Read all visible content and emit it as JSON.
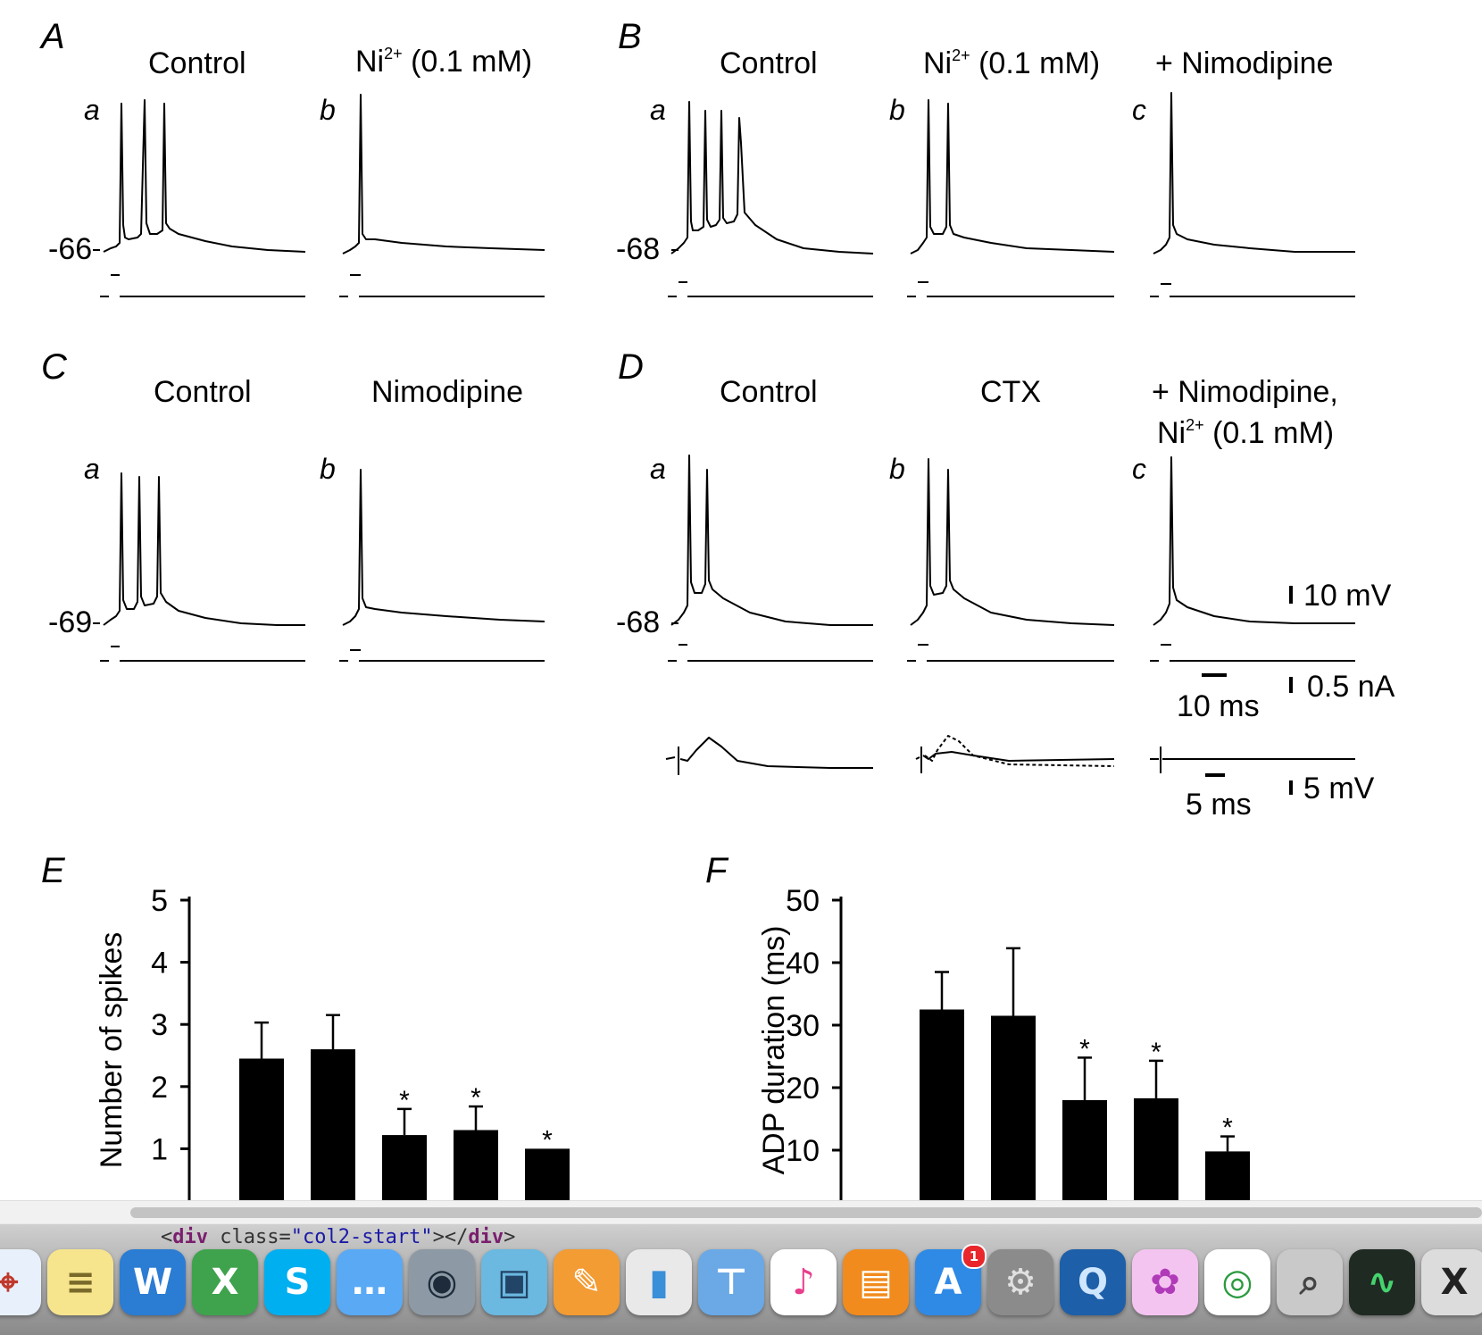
{
  "figure": {
    "panel_A": {
      "label": "A",
      "conditions": [
        {
          "sub": "a",
          "title": "Control"
        },
        {
          "sub": "b",
          "title_base": "Ni",
          "title_sup": "2+",
          "title_rest": " (0.1 mM)"
        }
      ],
      "vm": "-66"
    },
    "panel_B": {
      "label": "B",
      "conditions": [
        {
          "sub": "a",
          "title": "Control"
        },
        {
          "sub": "b",
          "title_base": "Ni",
          "title_sup": "2+",
          "title_rest": " (0.1 mM)"
        },
        {
          "sub": "c",
          "title": "+ Nimodipine"
        }
      ],
      "vm": "-68"
    },
    "panel_C": {
      "label": "C",
      "conditions": [
        {
          "sub": "a",
          "title": "Control"
        },
        {
          "sub": "b",
          "title": "Nimodipine"
        }
      ],
      "vm": "-69"
    },
    "panel_D": {
      "label": "D",
      "conditions": [
        {
          "sub": "a",
          "title": "Control"
        },
        {
          "sub": "b",
          "title": "CTX"
        },
        {
          "sub": "c",
          "title_line1": "+ Nimodipine,",
          "title_base": "Ni",
          "title_sup": "2+",
          "title_rest": " (0.1 mM)"
        }
      ],
      "vm": "-68"
    },
    "scalebars": {
      "voltage": "10 mV",
      "current": "0.5 nA",
      "time": "10 ms",
      "inset_time": "5 ms",
      "inset_voltage": "5 mV"
    },
    "panel_E": {
      "label": "E"
    },
    "panel_F": {
      "label": "F"
    }
  },
  "chart_data": [
    {
      "type": "bar",
      "panel": "E",
      "ylabel": "Number of spikes",
      "ylim": [
        0,
        5
      ],
      "yticks": [
        "5",
        "4",
        "3",
        "2",
        "1"
      ],
      "values": [
        2.45,
        2.6,
        1.22,
        1.3,
        1.0
      ],
      "errors": [
        0.58,
        0.55,
        0.42,
        0.38,
        0
      ],
      "significance": [
        "",
        "",
        "*",
        "*",
        "*"
      ]
    },
    {
      "type": "bar",
      "panel": "F",
      "ylabel": "ADP duration (ms)",
      "ylim": [
        0,
        50
      ],
      "yticks": [
        "50",
        "40",
        "30",
        "20",
        "10"
      ],
      "values": [
        32.5,
        31.5,
        18.0,
        18.3,
        9.8
      ],
      "errors": [
        6.0,
        10.8,
        6.8,
        6.0,
        2.4
      ],
      "significance": [
        "",
        "",
        "*",
        "*",
        "*"
      ]
    }
  ],
  "scrollbar": {
    "orientation": "horizontal"
  },
  "dock": {
    "tooltip": {
      "t1": "<",
      "t2": "div",
      "t3": " class=",
      "t4": "\"col2-start\"",
      "t5": "></",
      "t6": "div",
      "t7": ">"
    },
    "apps": [
      {
        "name": "safari-icon",
        "glyph": "⌖",
        "color": "#e8f1fb",
        "fg": "#c0392b"
      },
      {
        "name": "stickies-icon",
        "glyph": "≡",
        "color": "#f6e58d",
        "fg": "#7a6a2a"
      },
      {
        "name": "word-icon",
        "glyph": "W",
        "color": "#2b7cd3",
        "fg": "#ffffff"
      },
      {
        "name": "excel-icon",
        "glyph": "X",
        "color": "#3fa34d",
        "fg": "#ffffff"
      },
      {
        "name": "skype-icon",
        "glyph": "S",
        "color": "#00aff0",
        "fg": "#ffffff"
      },
      {
        "name": "messages-icon",
        "glyph": "…",
        "color": "#5aa9f5",
        "fg": "#ffffff"
      },
      {
        "name": "facetime-icon",
        "glyph": "◉",
        "color": "#8d9aa6",
        "fg": "#1d2b3a"
      },
      {
        "name": "iphoto-icon",
        "glyph": "▣",
        "color": "#6bb8e0",
        "fg": "#224466"
      },
      {
        "name": "pages-icon",
        "glyph": "✎",
        "color": "#f39c33",
        "fg": "#ffffff"
      },
      {
        "name": "numbers-icon",
        "glyph": "▮",
        "color": "#e9e9e9",
        "fg": "#3a8fd9"
      },
      {
        "name": "keynote-icon",
        "glyph": "⊤",
        "color": "#6aa9e6",
        "fg": "#ffffff"
      },
      {
        "name": "itunes-icon",
        "glyph": "♪",
        "color": "#ffffff",
        "fg": "#e83e8c"
      },
      {
        "name": "ibooks-icon",
        "glyph": "▤",
        "color": "#f18b1d",
        "fg": "#ffffff"
      },
      {
        "name": "app-store-icon",
        "glyph": "A",
        "color": "#2f8ae6",
        "fg": "#ffffff",
        "badge": "1"
      },
      {
        "name": "system-preferences-icon",
        "glyph": "⚙",
        "color": "#8b8b8b",
        "fg": "#e0e0e0"
      },
      {
        "name": "quicktime-icon",
        "glyph": "Q",
        "color": "#1d5fa8",
        "fg": "#cfe6ff"
      },
      {
        "name": "flower-app-icon",
        "glyph": "✿",
        "color": "#f4c4f0",
        "fg": "#b03bb8"
      },
      {
        "name": "chrome-icon",
        "glyph": "◎",
        "color": "#ffffff",
        "fg": "#2a9a3f"
      },
      {
        "name": "preview-icon",
        "glyph": "⌕",
        "color": "#c9c9c9",
        "fg": "#444444"
      },
      {
        "name": "activity-monitor-icon",
        "glyph": "∿",
        "color": "#1f2a22",
        "fg": "#45d36e"
      },
      {
        "name": "x11-icon",
        "glyph": "X",
        "color": "#dcdcdc",
        "fg": "#222222"
      }
    ]
  }
}
